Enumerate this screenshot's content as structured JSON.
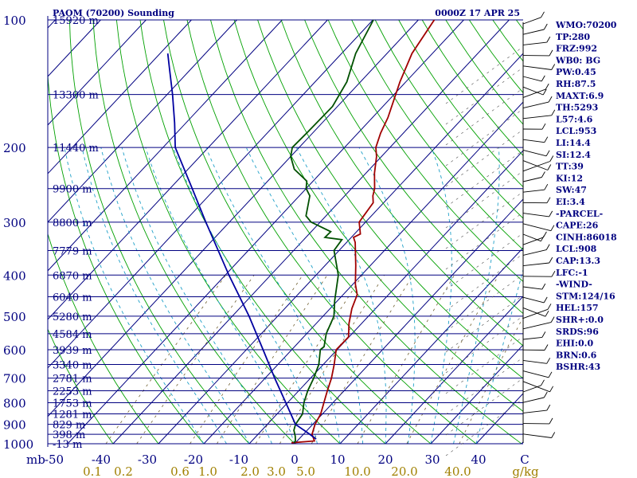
{
  "header": {
    "station": "PAOM (70200) Sounding",
    "time": "0000Z 17 APR 25"
  },
  "colors": {
    "isobar": "#000080",
    "isotherm": "#000080",
    "dry_adiabat": "#00a000",
    "moist_adiabat": "#1fa0c8",
    "mixing_ratio": "#706030",
    "temperature": "#a00000",
    "dewpoint": "#005000",
    "parcel": "#0000a0",
    "text": "#000080",
    "mixing_label": "#a08000"
  },
  "chart_data": {
    "type": "line",
    "diagram": "Skew-T log-P",
    "pressure_levels": [
      100,
      200,
      300,
      400,
      500,
      600,
      700,
      800,
      900,
      1000
    ],
    "height_labels": [
      {
        "p": 100,
        "label": "15920 m"
      },
      {
        "p": 150,
        "label": "13300 m"
      },
      {
        "p": 200,
        "label": "11440 m"
      },
      {
        "p": 250,
        "label": "9900 m"
      },
      {
        "p": 300,
        "label": "8800 m"
      },
      {
        "p": 350,
        "label": "7779 m"
      },
      {
        "p": 400,
        "label": "6870 m"
      },
      {
        "p": 450,
        "label": "6040 m"
      },
      {
        "p": 500,
        "label": "5280 m"
      },
      {
        "p": 550,
        "label": "4584 m"
      },
      {
        "p": 600,
        "label": "3939 m"
      },
      {
        "p": 650,
        "label": "3340 m"
      },
      {
        "p": 700,
        "label": "2781 m"
      },
      {
        "p": 750,
        "label": "2253 m"
      },
      {
        "p": 800,
        "label": "1753 m"
      },
      {
        "p": 850,
        "label": "1281 m"
      },
      {
        "p": 900,
        "label": "829 m"
      },
      {
        "p": 950,
        "label": "398 m"
      },
      {
        "p": 1000,
        "label": "-13 m"
      }
    ],
    "temperature_ticks": [
      "-50",
      "-40",
      "-30",
      "-20",
      "-10",
      "0",
      "10",
      "20",
      "30",
      "40",
      "C"
    ],
    "mixing_ratio_ticks": [
      "0.1",
      "0.2",
      "0.6",
      "1.0",
      "2.0",
      "3.0",
      "5.0",
      "10.0",
      "20.0",
      "40.0",
      "g/kg"
    ],
    "pressure_unit": "mb",
    "series": [
      {
        "key": "temperature",
        "points": [
          [
            995,
            -0.9
          ],
          [
            985,
            3.8
          ],
          [
            950,
            1.9
          ],
          [
            900,
            0.5
          ],
          [
            850,
            -0.4
          ],
          [
            800,
            -2.0
          ],
          [
            750,
            -3.7
          ],
          [
            700,
            -5.4
          ],
          [
            650,
            -7.6
          ],
          [
            600,
            -10.2
          ],
          [
            560,
            -10.1
          ],
          [
            520,
            -12.8
          ],
          [
            480,
            -15.2
          ],
          [
            445,
            -16.9
          ],
          [
            420,
            -19.5
          ],
          [
            380,
            -23.2
          ],
          [
            335,
            -28.1
          ],
          [
            326,
            -29.5
          ],
          [
            320,
            -28.7
          ],
          [
            300,
            -31.4
          ],
          [
            270,
            -32.3
          ],
          [
            260,
            -33.8
          ],
          [
            250,
            -34.9
          ],
          [
            230,
            -38.1
          ],
          [
            210,
            -41.1
          ],
          [
            200,
            -43.1
          ],
          [
            185,
            -45.0
          ],
          [
            170,
            -46.6
          ],
          [
            140,
            -51.3
          ],
          [
            120,
            -54.5
          ],
          [
            100,
            -56.5
          ]
        ]
      },
      {
        "key": "dewpoint",
        "points": [
          [
            995,
            -0.3
          ],
          [
            985,
            -0.4
          ],
          [
            960,
            -1.4
          ],
          [
            930,
            -2.9
          ],
          [
            900,
            -3.8
          ],
          [
            850,
            -4.4
          ],
          [
            800,
            -6.4
          ],
          [
            750,
            -8.0
          ],
          [
            700,
            -9.3
          ],
          [
            650,
            -11.0
          ],
          [
            600,
            -13.7
          ],
          [
            590,
            -13.5
          ],
          [
            550,
            -15.7
          ],
          [
            500,
            -17.6
          ],
          [
            460,
            -20.6
          ],
          [
            400,
            -25.1
          ],
          [
            350,
            -31.1
          ],
          [
            330,
            -31.6
          ],
          [
            326,
            -35.8
          ],
          [
            316,
            -35.7
          ],
          [
            300,
            -42.0
          ],
          [
            290,
            -44.4
          ],
          [
            260,
            -47.7
          ],
          [
            250,
            -50.0
          ],
          [
            240,
            -51.4
          ],
          [
            225,
            -56.6
          ],
          [
            210,
            -60.0
          ],
          [
            200,
            -61.5
          ],
          [
            185,
            -61.3
          ],
          [
            160,
            -61.1
          ],
          [
            140,
            -63.0
          ],
          [
            120,
            -66.9
          ],
          [
            100,
            -69.9
          ]
        ]
      },
      {
        "key": "parcel",
        "points": [
          [
            975,
            3.8
          ],
          [
            950,
            1.4
          ],
          [
            900,
            -3.8
          ],
          [
            850,
            -7.0
          ],
          [
            800,
            -10.4
          ],
          [
            700,
            -17.9
          ],
          [
            600,
            -26.3
          ],
          [
            500,
            -36.3
          ],
          [
            400,
            -49.2
          ],
          [
            300,
            -65.2
          ],
          [
            250,
            -75.1
          ],
          [
            200,
            -87.3
          ],
          [
            175,
            -92.5
          ],
          [
            150,
            -98.8
          ],
          [
            130,
            -104.9
          ],
          [
            120,
            -108.3
          ]
        ]
      }
    ]
  },
  "indices": [
    "WMO:70200",
    "TP:280",
    "FRZ:992",
    "WB0: BG",
    "PW:0.45",
    "RH:87.5",
    "MAXT:6.9",
    "TH:5293",
    "L57:4.6",
    "LCL:953",
    "LI:14.4",
    "SI:12.4",
    "TT:39",
    "KI:12",
    "SW:47",
    "EI:3.4",
    "-PARCEL-",
    "CAPE:26",
    "CINH:86018",
    "LCL:908",
    "CAP:13.3",
    "LFC:-1",
    "-WIND-",
    "STM:124/16",
    "HEL:157",
    "SHR+:0.0",
    "SRDS:96",
    "EHI:0.0",
    "BRN:0.6",
    "BSHR:43"
  ]
}
